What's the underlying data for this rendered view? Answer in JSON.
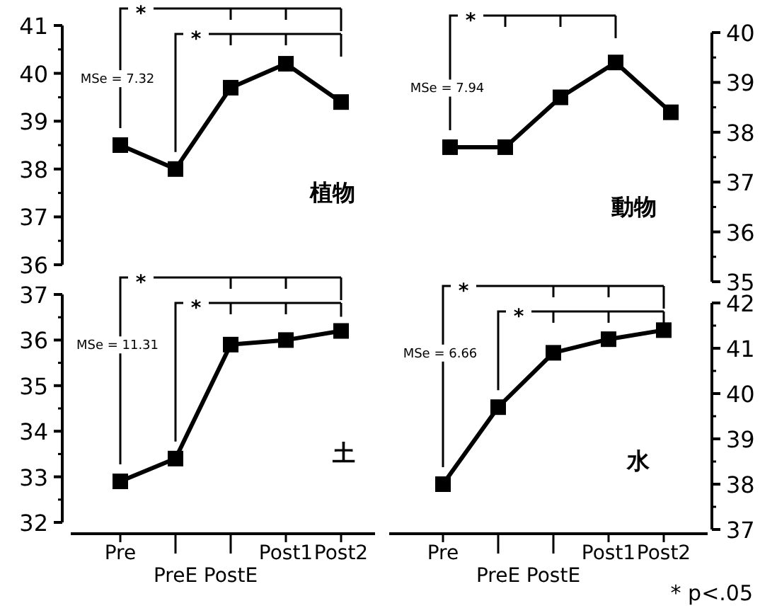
{
  "chart_data": [
    {
      "type": "line",
      "title": "植物",
      "series": [
        {
          "color": "#000000",
          "values": [
            38.5,
            38.0,
            39.7,
            40.2,
            39.4
          ]
        }
      ],
      "ylim": [
        36,
        41
      ],
      "yticks": [
        36,
        37,
        38,
        39,
        40,
        41
      ],
      "tick_labels": "y",
      "marker": "square",
      "line_style": "solid",
      "annotations": [
        "MSe = 7.32",
        "*",
        "*"
      ]
    },
    {
      "type": "line",
      "title": "動物",
      "series": [
        {
          "color": "#000000",
          "values": [
            37.7,
            37.7,
            38.7,
            39.4,
            38.4
          ]
        }
      ],
      "ylim": [
        35,
        40
      ],
      "yticks": [
        35,
        36,
        37,
        38,
        39,
        40
      ],
      "tick_labels": "y",
      "marker": "square",
      "line_style": "solid",
      "annotations": [
        "MSe = 7.94",
        "*"
      ]
    },
    {
      "type": "line",
      "title": "土",
      "categories": [
        "Pre",
        "PreE",
        "PostE",
        "Post1",
        "Post2"
      ],
      "series": [
        {
          "color": "#000000",
          "values": [
            32.9,
            33.4,
            35.9,
            36.0,
            36.2
          ]
        }
      ],
      "ylim": [
        32,
        37
      ],
      "yticks": [
        32,
        33,
        34,
        35,
        36,
        37
      ],
      "marker": "square",
      "line_style": "solid",
      "annotations": [
        "MSe = 11.31",
        "*",
        "*"
      ]
    },
    {
      "type": "line",
      "title": "水",
      "categories": [
        "Pre",
        "PreE",
        "PostE",
        "Post1",
        "Post2"
      ],
      "series": [
        {
          "color": "#000000",
          "values": [
            38.0,
            39.7,
            40.9,
            41.2,
            41.4
          ]
        }
      ],
      "ylim": [
        37,
        42
      ],
      "yticks": [
        37,
        38,
        39,
        40,
        41,
        42
      ],
      "marker": "square",
      "line_style": "solid",
      "annotations": [
        "MSe = 6.66",
        "*",
        "*",
        "* p<.05"
      ]
    }
  ]
}
